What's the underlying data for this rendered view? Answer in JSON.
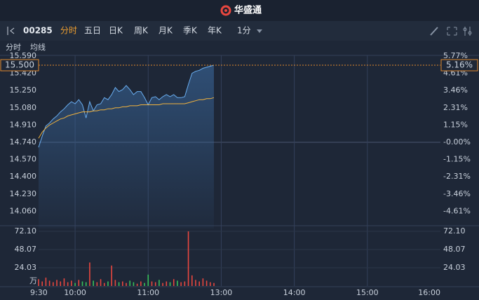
{
  "header": {
    "title": "华盛通"
  },
  "toolbar": {
    "code": "00285",
    "tabs": [
      "分时",
      "五日",
      "日K",
      "周K",
      "月K",
      "季K",
      "年K"
    ],
    "interval": "1分"
  },
  "chart_data": {
    "type": "line",
    "x": [
      "9:30",
      "9:33",
      "9:36",
      "9:39",
      "9:42",
      "9:45",
      "9:48",
      "9:51",
      "9:54",
      "9:57",
      "10:00",
      "10:03",
      "10:06",
      "10:09",
      "10:12",
      "10:15",
      "10:18",
      "10:21",
      "10:24",
      "10:27",
      "10:30",
      "10:33",
      "10:36",
      "10:39",
      "10:42",
      "10:45",
      "10:48",
      "10:51",
      "10:54",
      "10:57",
      "11:00",
      "11:03",
      "11:06",
      "11:09",
      "11:12",
      "11:15",
      "11:18",
      "11:21",
      "11:24",
      "11:27",
      "11:30",
      "11:33",
      "11:36",
      "11:39",
      "11:42",
      "11:45",
      "11:48",
      "11:51",
      "11:54"
    ],
    "series": [
      {
        "name": "分时",
        "color": "#6aaef0",
        "values": [
          14.69,
          14.8,
          14.9,
          14.93,
          14.97,
          15.0,
          15.04,
          15.07,
          15.11,
          15.14,
          15.12,
          15.16,
          15.11,
          14.98,
          15.14,
          15.05,
          15.11,
          15.12,
          15.18,
          15.16,
          15.21,
          15.28,
          15.24,
          15.26,
          15.3,
          15.26,
          15.21,
          15.24,
          15.24,
          15.18,
          15.11,
          15.18,
          15.19,
          15.16,
          15.19,
          15.21,
          15.19,
          15.21,
          15.18,
          15.18,
          15.19,
          15.31,
          15.42,
          15.44,
          15.45,
          15.47,
          15.48,
          15.49,
          15.5
        ]
      },
      {
        "name": "均线",
        "color": "#f2b33d",
        "values": [
          14.78,
          14.84,
          14.88,
          14.91,
          14.93,
          14.95,
          14.97,
          14.98,
          15.0,
          15.01,
          15.02,
          15.03,
          15.04,
          15.04,
          15.04,
          15.05,
          15.05,
          15.06,
          15.06,
          15.07,
          15.07,
          15.08,
          15.08,
          15.09,
          15.09,
          15.1,
          15.1,
          15.1,
          15.11,
          15.11,
          15.11,
          15.11,
          15.11,
          15.11,
          15.12,
          15.12,
          15.12,
          15.12,
          15.12,
          15.12,
          15.12,
          15.13,
          15.14,
          15.15,
          15.16,
          15.16,
          15.17,
          15.17,
          15.18
        ]
      }
    ],
    "ylim": [
      13.89,
      15.59
    ],
    "yticks": [
      {
        "value": 15.59,
        "label": "15.590"
      },
      {
        "value": 15.42,
        "label": "15.420"
      },
      {
        "value": 15.25,
        "label": "15.250"
      },
      {
        "value": 15.08,
        "label": "15.080"
      },
      {
        "value": 14.91,
        "label": "14.910"
      },
      {
        "value": 14.74,
        "label": "14.740"
      },
      {
        "value": 14.57,
        "label": "14.570"
      },
      {
        "value": 14.4,
        "label": "14.400"
      },
      {
        "value": 14.23,
        "label": "14.230"
      },
      {
        "value": 14.06,
        "label": "14.060"
      }
    ],
    "y2lim": [
      -5.77,
      5.77
    ],
    "y2ticks": [
      {
        "value": 5.77,
        "label": "5.77%"
      },
      {
        "value": 4.61,
        "label": "4.61%"
      },
      {
        "value": 3.46,
        "label": "3.46%"
      },
      {
        "value": 2.31,
        "label": "2.31%"
      },
      {
        "value": 1.15,
        "label": "1.15%"
      },
      {
        "value": 0,
        "label": "-0.00%"
      },
      {
        "value": -1.15,
        "label": "-1.15%"
      },
      {
        "value": -2.31,
        "label": "-2.31%"
      },
      {
        "value": -3.46,
        "label": "-3.46%"
      },
      {
        "value": -4.61,
        "label": "-4.61%"
      }
    ],
    "xticks": [
      "9:30",
      "10:00",
      "11:00",
      "13:00",
      "14:00",
      "15:00",
      "16:00"
    ],
    "last_price": {
      "value": 15.5,
      "label": "15.500"
    },
    "last_change": {
      "value": 5.16,
      "label": "5.16%"
    },
    "volume": {
      "unit": "万",
      "values": [
        9,
        6,
        11,
        7,
        5,
        8,
        6,
        10,
        5,
        7,
        4,
        8,
        6,
        5,
        31,
        7,
        5,
        9,
        4,
        6,
        27,
        8,
        5,
        6,
        4,
        7,
        5,
        3,
        6,
        4,
        15,
        6,
        5,
        8,
        4,
        6,
        5,
        9,
        7,
        5,
        6,
        72,
        14,
        8,
        6,
        10,
        7,
        5,
        4
      ],
      "ylim": [
        0,
        72.1
      ],
      "yticks": [
        {
          "value": 72.1,
          "label": "72.10"
        },
        {
          "value": 48.07,
          "label": "48.07"
        },
        {
          "value": 24.03,
          "label": "24.03"
        }
      ]
    },
    "up_color": "#e8473f",
    "down_color": "#37c25a",
    "grid": true
  }
}
